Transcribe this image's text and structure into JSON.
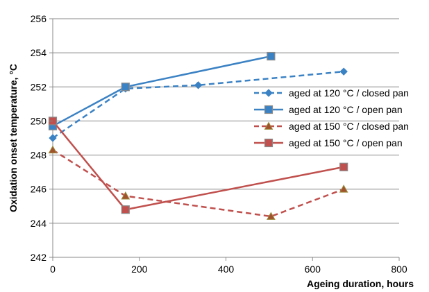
{
  "chart_data": {
    "type": "line",
    "title": "",
    "xlabel": "Ageing duration, hours",
    "ylabel": "Oxidation onset temperature, °C",
    "xlim": [
      0,
      800
    ],
    "ylim": [
      242,
      256
    ],
    "xticks": [
      0,
      200,
      400,
      600,
      800
    ],
    "yticks": [
      242,
      244,
      246,
      248,
      250,
      252,
      254,
      256
    ],
    "grid": "horizontal",
    "legend_position": "right",
    "series": [
      {
        "name": "aged at 120 °C / closed pan",
        "x": [
          0,
          168,
          336,
          672
        ],
        "y": [
          249.0,
          251.9,
          252.1,
          252.9
        ],
        "color": "#3b82c4",
        "dash": "dashed",
        "marker": "diamond"
      },
      {
        "name": "aged at 120 °C / open pan",
        "x": [
          0,
          168,
          504
        ],
        "y": [
          249.7,
          252.0,
          253.8
        ],
        "color": "#3b82c4",
        "dash": "solid",
        "marker": "square"
      },
      {
        "name": "aged at 150 °C / closed pan",
        "x": [
          0,
          168,
          504,
          672
        ],
        "y": [
          248.3,
          245.6,
          244.4,
          246.0
        ],
        "color": "#c0504d",
        "dash": "dashed",
        "marker": "triangle"
      },
      {
        "name": "aged at 150 °C / open pan",
        "x": [
          0,
          168,
          672
        ],
        "y": [
          250.0,
          244.8,
          247.3
        ],
        "color": "#c0504d",
        "dash": "solid",
        "marker": "square"
      }
    ]
  }
}
